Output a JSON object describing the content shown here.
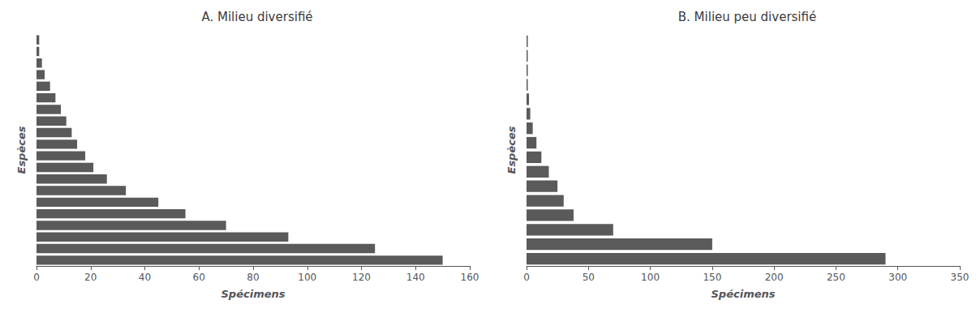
{
  "chart_data": [
    {
      "type": "bar",
      "orientation": "horizontal",
      "title": "A. Milieu diversifié",
      "xlabel": "Spécimens",
      "ylabel": "Espèces",
      "xlim": [
        0,
        160
      ],
      "xticks": [
        0,
        20,
        40,
        60,
        80,
        100,
        120,
        140,
        160
      ],
      "values": [
        150,
        125,
        93,
        70,
        55,
        45,
        33,
        26,
        21,
        18,
        15,
        13,
        11,
        9,
        7,
        5,
        3,
        2,
        1,
        1
      ],
      "color": "#5a5a5a",
      "grid": false,
      "tick_labels": "x"
    },
    {
      "type": "bar",
      "orientation": "horizontal",
      "title": "B. Milieu peu diversifié",
      "xlabel": "Spécimens",
      "ylabel": "Espèces",
      "xlim": [
        0,
        350
      ],
      "xticks": [
        0,
        50,
        100,
        150,
        200,
        250,
        300,
        350
      ],
      "values": [
        290,
        150,
        70,
        38,
        30,
        25,
        18,
        12,
        8,
        5,
        3,
        2,
        1,
        1,
        1,
        1
      ],
      "color": "#5a5a5a",
      "grid": false,
      "tick_labels": "x"
    }
  ]
}
